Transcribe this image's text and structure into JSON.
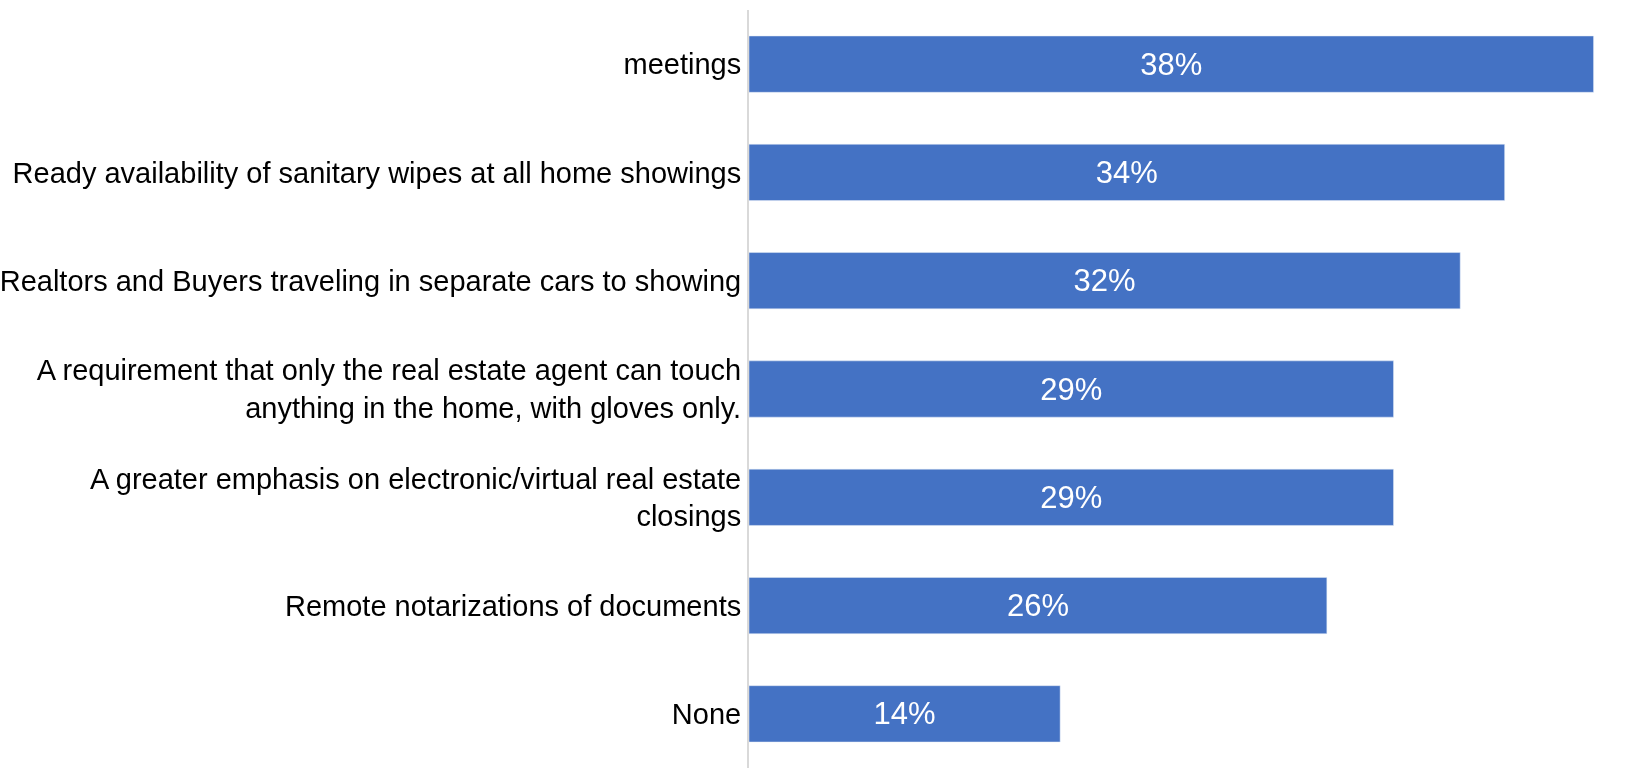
{
  "chart_data": {
    "type": "bar",
    "orientation": "horizontal",
    "categories": [
      "meetings",
      "Ready availability of sanitary wipes at all home showings",
      "Realtors and Buyers traveling in separate cars to showing",
      "A requirement that only the real estate agent can touch\nanything in the home, with gloves only.",
      "A greater emphasis on electronic/virtual real estate\nclosings",
      "Remote notarizations of documents",
      "None"
    ],
    "values": [
      38,
      34,
      32,
      29,
      29,
      26,
      14
    ],
    "value_labels": [
      "38%",
      "34%",
      "32%",
      "29%",
      "29%",
      "26%",
      "14%"
    ],
    "color": "#4472c4"
  }
}
